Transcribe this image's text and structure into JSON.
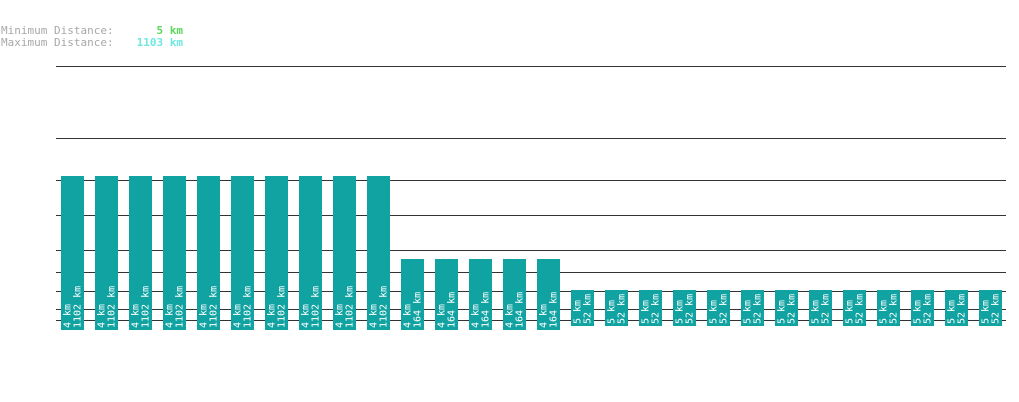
{
  "header": {
    "min_label": "Minimum Distance:",
    "min_value": "5 km",
    "max_label": "Maximum Distance:",
    "max_value": "1103 km",
    "min_color": "#5bd75b",
    "max_color": "#6ee8e0"
  },
  "chart_data": {
    "type": "bar",
    "bar_color": "#11a2a2",
    "grid": true,
    "bars": [
      {
        "top_label": "4 km",
        "bottom_label": "1102 km",
        "value": 1102
      },
      {
        "top_label": "4 km",
        "bottom_label": "1102 km",
        "value": 1102
      },
      {
        "top_label": "4 km",
        "bottom_label": "1102 km",
        "value": 1102
      },
      {
        "top_label": "4 km",
        "bottom_label": "1102 km",
        "value": 1102
      },
      {
        "top_label": "4 km",
        "bottom_label": "1102 km",
        "value": 1102
      },
      {
        "top_label": "4 km",
        "bottom_label": "1102 km",
        "value": 1102
      },
      {
        "top_label": "4 km",
        "bottom_label": "1102 km",
        "value": 1102
      },
      {
        "top_label": "4 km",
        "bottom_label": "1102 km",
        "value": 1102
      },
      {
        "top_label": "4 km",
        "bottom_label": "1102 km",
        "value": 1102
      },
      {
        "top_label": "4 km",
        "bottom_label": "1102 km",
        "value": 1102
      },
      {
        "top_label": "4 km",
        "bottom_label": "164 km",
        "value": 164
      },
      {
        "top_label": "4 km",
        "bottom_label": "164 km",
        "value": 164
      },
      {
        "top_label": "4 km",
        "bottom_label": "164 km",
        "value": 164
      },
      {
        "top_label": "4 km",
        "bottom_label": "164 km",
        "value": 164
      },
      {
        "top_label": "4 km",
        "bottom_label": "164 km",
        "value": 164
      },
      {
        "top_label": "5 km",
        "bottom_label": "52 km",
        "value": 52
      },
      {
        "top_label": "5 km",
        "bottom_label": "52 km",
        "value": 52
      },
      {
        "top_label": "5 km",
        "bottom_label": "52 km",
        "value": 52
      },
      {
        "top_label": "5 km",
        "bottom_label": "52 km",
        "value": 52
      },
      {
        "top_label": "5 km",
        "bottom_label": "52 km",
        "value": 52
      },
      {
        "top_label": "5 km",
        "bottom_label": "52 km",
        "value": 52
      },
      {
        "top_label": "5 km",
        "bottom_label": "52 km",
        "value": 52
      },
      {
        "top_label": "5 km",
        "bottom_label": "52 km",
        "value": 52
      },
      {
        "top_label": "5 km",
        "bottom_label": "52 km",
        "value": 52
      },
      {
        "top_label": "5 km",
        "bottom_label": "52 km",
        "value": 52
      },
      {
        "top_label": "5 km",
        "bottom_label": "52 km",
        "value": 52
      },
      {
        "top_label": "5 km",
        "bottom_label": "52 km",
        "value": 52
      },
      {
        "top_label": "5 km",
        "bottom_label": "52 km",
        "value": 52
      }
    ]
  }
}
